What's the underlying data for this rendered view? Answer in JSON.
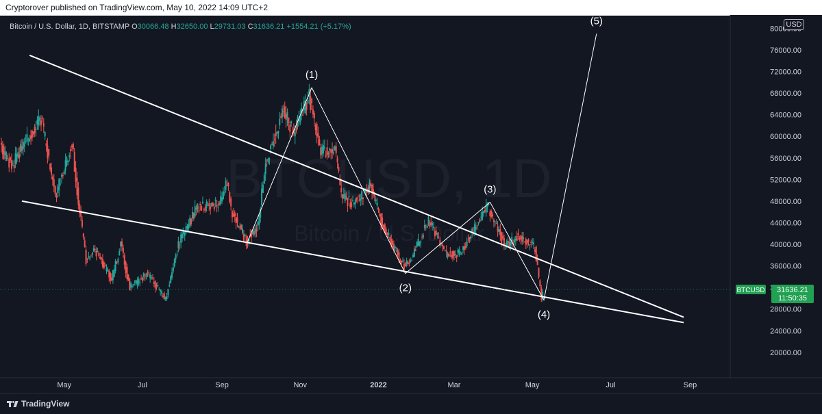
{
  "header": {
    "published_text": "Cryptorover published on TradingView.com, May 10, 2022 14:09 UTC+2"
  },
  "legend": {
    "symbol_label": "Bitcoin / U.S. Dollar, 1D, BITSTAMP",
    "o_label": "O",
    "o_value": "30066.48",
    "h_label": "H",
    "h_value": "32650.00",
    "l_label": "L",
    "l_value": "29731.03",
    "c_label": "C",
    "c_value": "31636.21",
    "change": "+1554.21 (+5.17%)"
  },
  "currency_button": "USD",
  "watermark": {
    "big": "BTCUSD, 1D",
    "small": "Bitcoin / U.S. Dollar"
  },
  "price_tag": {
    "symbol": "BTCUSD",
    "price": "31636.21",
    "countdown": "11:50:35"
  },
  "footer": {
    "brand": "TradingView"
  },
  "colors": {
    "background": "#131722",
    "up": "#26a69a",
    "down": "#ef5350",
    "text": "#d1d4dc",
    "tag": "#21a152"
  },
  "chart_data": {
    "type": "candlestick",
    "y_ticks": [
      "20000.00",
      "24000.00",
      "28000.00",
      "32000.00",
      "36000.00",
      "40000.00",
      "44000.00",
      "48000.00",
      "52000.00",
      "56000.00",
      "60000.00",
      "64000.00",
      "68000.00",
      "72000.00",
      "76000.00",
      "80000.00"
    ],
    "y_values": [
      20000,
      24000,
      28000,
      32000,
      36000,
      40000,
      44000,
      48000,
      52000,
      56000,
      60000,
      64000,
      68000,
      72000,
      76000,
      80000
    ],
    "ylim": [
      18000,
      82000
    ],
    "x_ticks": [
      {
        "label": "May",
        "date": "2021-05-01",
        "bold": false
      },
      {
        "label": "Jul",
        "date": "2021-07-01",
        "bold": false
      },
      {
        "label": "Sep",
        "date": "2021-09-01",
        "bold": false
      },
      {
        "label": "Nov",
        "date": "2021-11-01",
        "bold": false
      },
      {
        "label": "2022",
        "date": "2022-01-01",
        "bold": true
      },
      {
        "label": "Mar",
        "date": "2022-03-01",
        "bold": false
      },
      {
        "label": "May",
        "date": "2022-05-01",
        "bold": false
      },
      {
        "label": "Jul",
        "date": "2022-07-01",
        "bold": false
      },
      {
        "label": "Sep",
        "date": "2022-09-01",
        "bold": false
      }
    ],
    "xlim": [
      "2021-03-13",
      "2022-09-28"
    ],
    "price_path": [
      {
        "date": "2021-03-13",
        "price": 58000
      },
      {
        "date": "2021-03-22",
        "price": 54500
      },
      {
        "date": "2021-04-02",
        "price": 59000
      },
      {
        "date": "2021-04-14",
        "price": 63500
      },
      {
        "date": "2021-04-25",
        "price": 49000
      },
      {
        "date": "2021-05-08",
        "price": 58500
      },
      {
        "date": "2021-05-12",
        "price": 50000
      },
      {
        "date": "2021-05-19",
        "price": 37000
      },
      {
        "date": "2021-05-26",
        "price": 39000
      },
      {
        "date": "2021-06-08",
        "price": 33500
      },
      {
        "date": "2021-06-15",
        "price": 40000
      },
      {
        "date": "2021-06-22",
        "price": 32000
      },
      {
        "date": "2021-07-06",
        "price": 34500
      },
      {
        "date": "2021-07-20",
        "price": 29800
      },
      {
        "date": "2021-07-30",
        "price": 40000
      },
      {
        "date": "2021-08-14",
        "price": 47000
      },
      {
        "date": "2021-08-31",
        "price": 47500
      },
      {
        "date": "2021-09-06",
        "price": 51500
      },
      {
        "date": "2021-09-09",
        "price": 46500
      },
      {
        "date": "2021-09-21",
        "price": 40500
      },
      {
        "date": "2021-09-30",
        "price": 43500
      },
      {
        "date": "2021-10-06",
        "price": 55000
      },
      {
        "date": "2021-10-20",
        "price": 65000
      },
      {
        "date": "2021-10-28",
        "price": 60500
      },
      {
        "date": "2021-11-09",
        "price": 67500
      },
      {
        "date": "2021-11-18",
        "price": 57000
      },
      {
        "date": "2021-11-29",
        "price": 57500
      },
      {
        "date": "2021-12-04",
        "price": 49000
      },
      {
        "date": "2021-12-13",
        "price": 47500
      },
      {
        "date": "2021-12-27",
        "price": 51000
      },
      {
        "date": "2022-01-05",
        "price": 43500
      },
      {
        "date": "2022-01-22",
        "price": 36000
      },
      {
        "date": "2022-01-27",
        "price": 37000
      },
      {
        "date": "2022-02-10",
        "price": 44500
      },
      {
        "date": "2022-02-24",
        "price": 38000
      },
      {
        "date": "2022-03-07",
        "price": 38500
      },
      {
        "date": "2022-03-28",
        "price": 47000
      },
      {
        "date": "2022-04-11",
        "price": 39500
      },
      {
        "date": "2022-04-20",
        "price": 41500
      },
      {
        "date": "2022-05-04",
        "price": 39500
      },
      {
        "date": "2022-05-09",
        "price": 30066
      },
      {
        "date": "2022-05-10",
        "price": 31636
      }
    ],
    "trend_lines": [
      {
        "from": {
          "date": "2021-04-04",
          "price": 75000
        },
        "to": {
          "date": "2022-08-27",
          "price": 26500
        }
      },
      {
        "from": {
          "date": "2021-03-29",
          "price": 48000
        },
        "to": {
          "date": "2022-08-27",
          "price": 25500
        }
      }
    ],
    "wave_path": [
      {
        "date": "2021-09-21",
        "price": 40500
      },
      {
        "date": "2021-11-10",
        "price": 69000
      },
      {
        "date": "2022-01-22",
        "price": 34600
      },
      {
        "date": "2022-03-29",
        "price": 47800
      },
      {
        "date": "2022-05-10",
        "price": 29700
      },
      {
        "date": "2022-06-20",
        "price": 79000
      }
    ],
    "wave_labels": [
      {
        "text": "(1)",
        "date": "2021-11-10",
        "price": 69000,
        "pos": "above"
      },
      {
        "text": "(2)",
        "date": "2022-01-22",
        "price": 34600,
        "pos": "below"
      },
      {
        "text": "(3)",
        "date": "2022-03-29",
        "price": 47800,
        "pos": "above"
      },
      {
        "text": "(4)",
        "date": "2022-05-10",
        "price": 29700,
        "pos": "below"
      },
      {
        "text": "(5)",
        "date": "2022-06-20",
        "price": 79000,
        "pos": "above"
      }
    ],
    "last_close": 31636.21
  }
}
